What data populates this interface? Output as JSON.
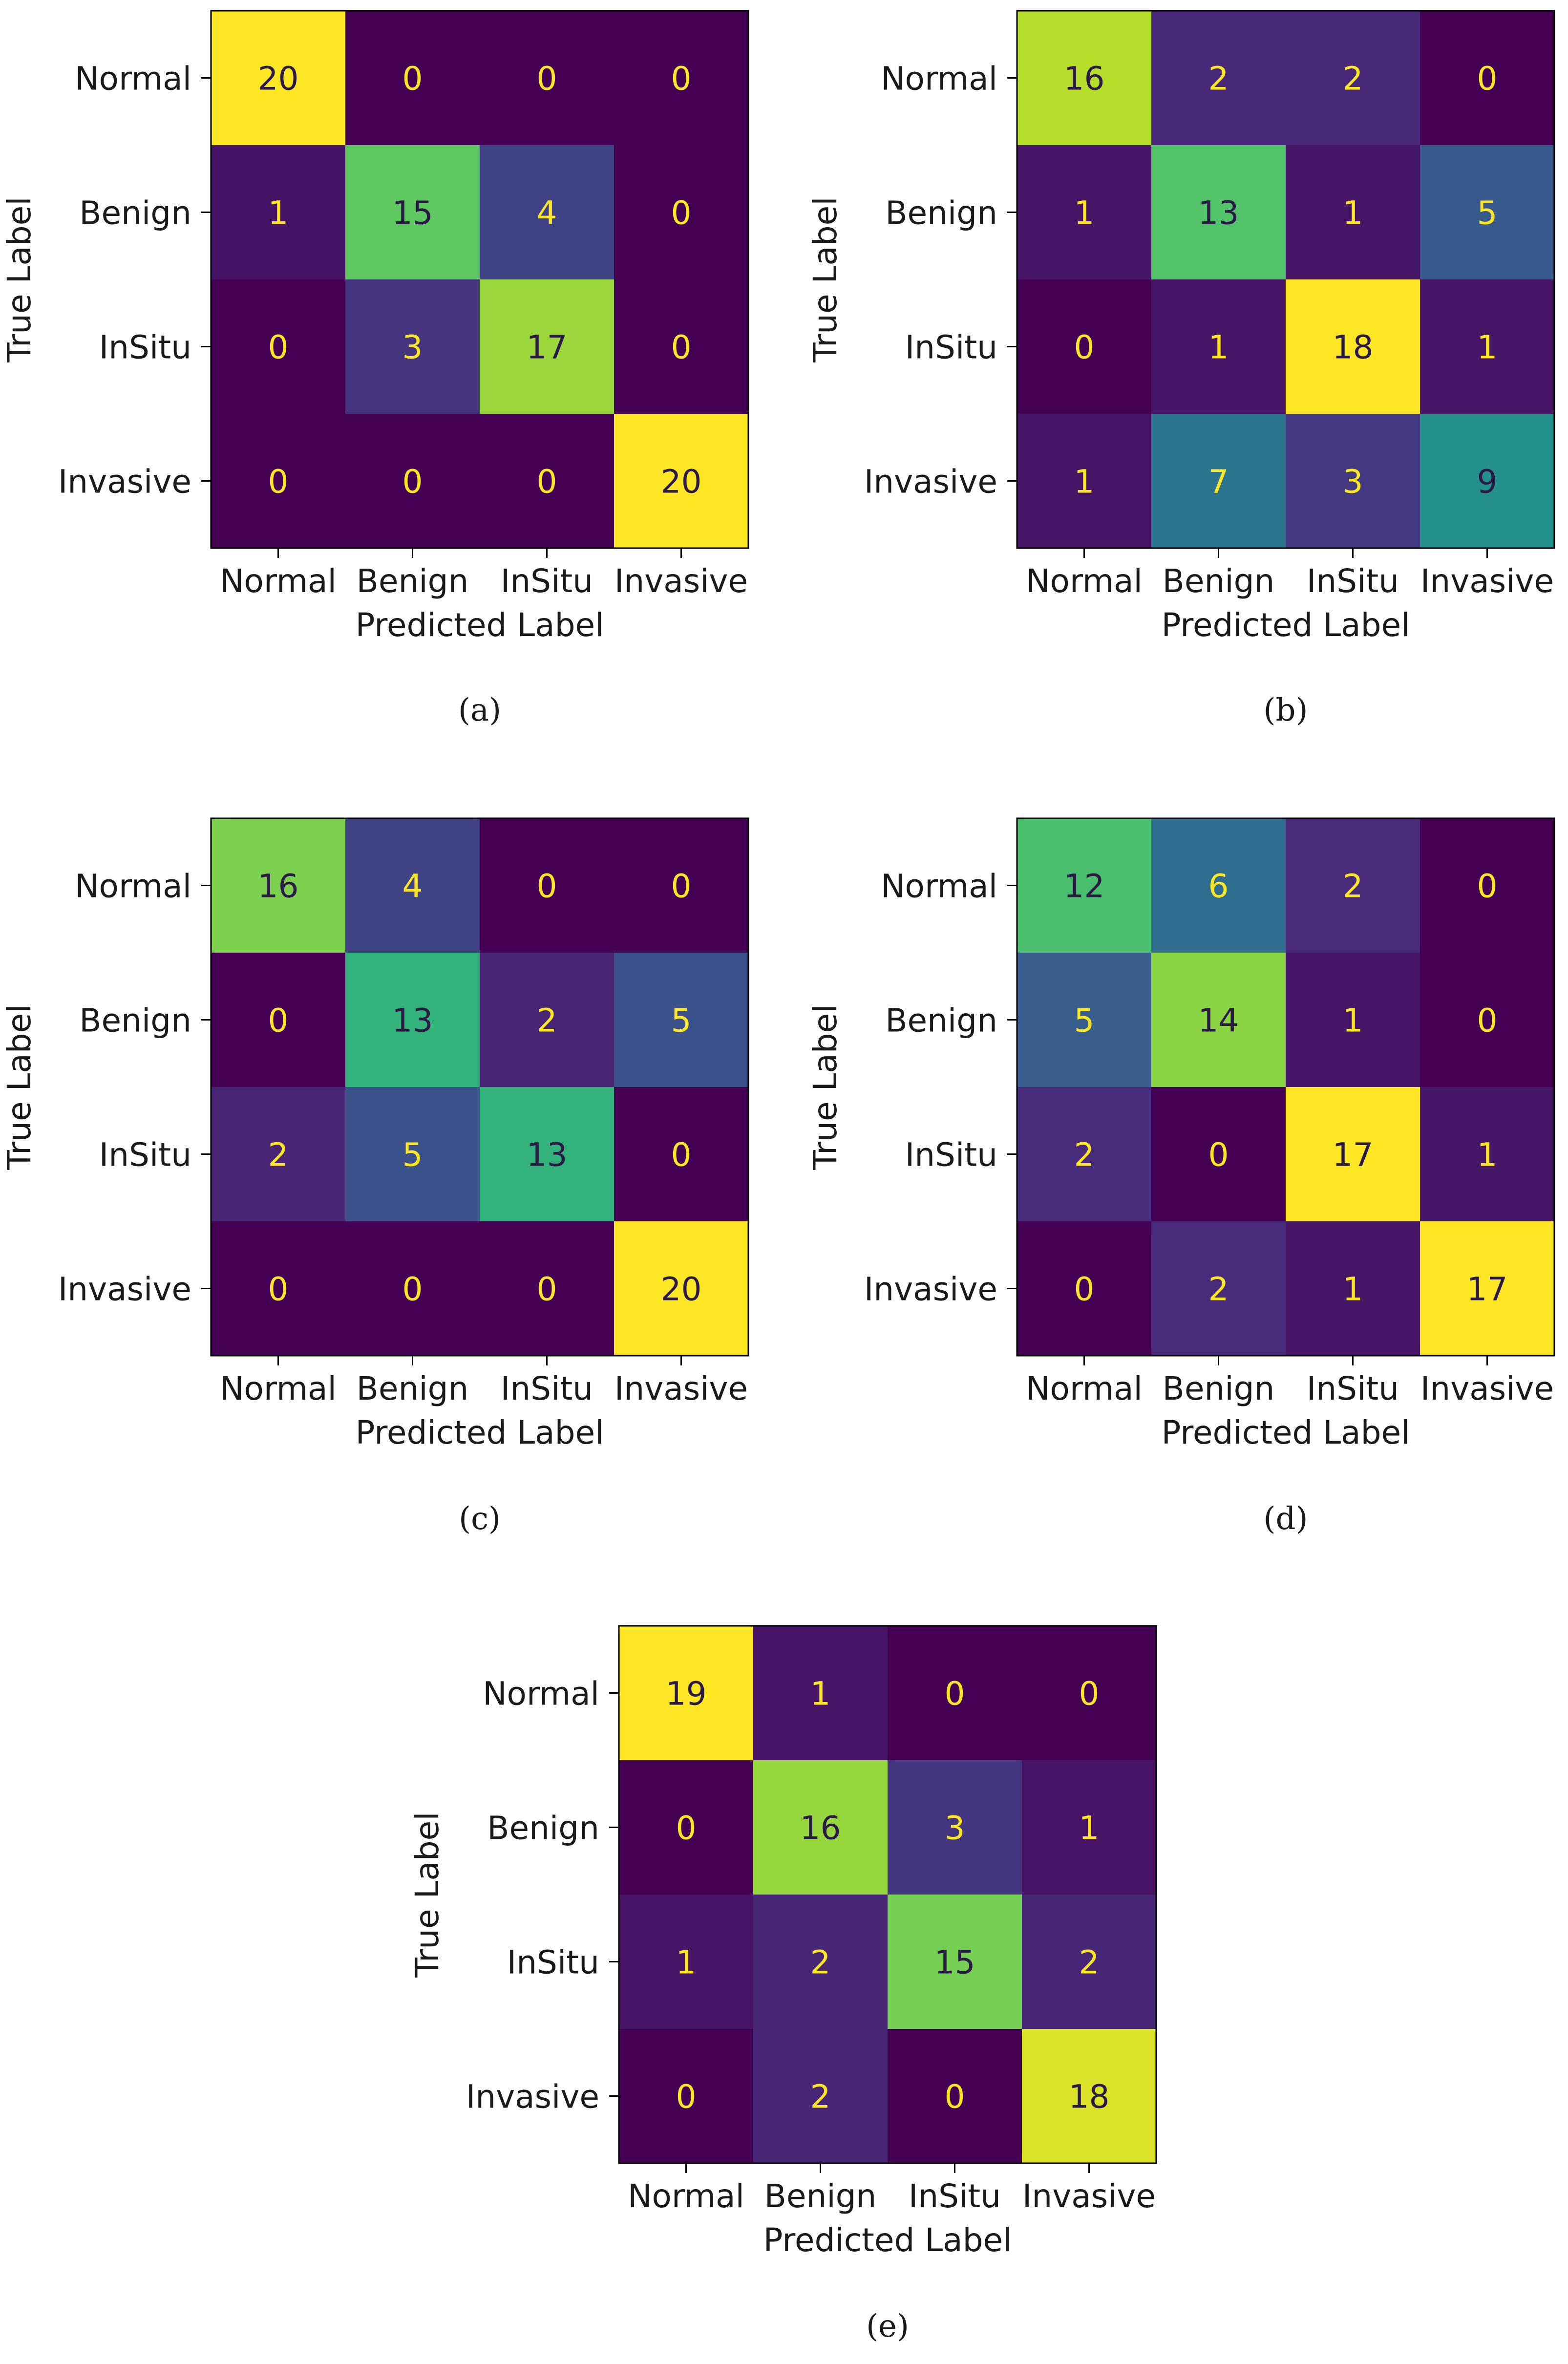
{
  "chart_data": [
    {
      "type": "heatmap",
      "caption": "(a)",
      "xlabel": "Predicted Label",
      "ylabel": "True Label",
      "x_categories": [
        "Normal",
        "Benign",
        "InSitu",
        "Invasive"
      ],
      "y_categories": [
        "Normal",
        "Benign",
        "InSitu",
        "Invasive"
      ],
      "values": [
        [
          20,
          0,
          0,
          0
        ],
        [
          1,
          15,
          4,
          0
        ],
        [
          0,
          3,
          17,
          0
        ],
        [
          0,
          0,
          0,
          20
        ]
      ],
      "vmin": 0,
      "vmax": 20,
      "colormap": "viridis"
    },
    {
      "type": "heatmap",
      "caption": "(b)",
      "xlabel": "Predicted Label",
      "ylabel": "True Label",
      "x_categories": [
        "Normal",
        "Benign",
        "InSitu",
        "Invasive"
      ],
      "y_categories": [
        "Normal",
        "Benign",
        "InSitu",
        "Invasive"
      ],
      "values": [
        [
          16,
          2,
          2,
          0
        ],
        [
          1,
          13,
          1,
          5
        ],
        [
          0,
          1,
          18,
          1
        ],
        [
          1,
          7,
          3,
          9
        ]
      ],
      "vmin": 0,
      "vmax": 18,
      "colormap": "viridis"
    },
    {
      "type": "heatmap",
      "caption": "(c)",
      "xlabel": "Predicted Label",
      "ylabel": "True Label",
      "x_categories": [
        "Normal",
        "Benign",
        "InSitu",
        "Invasive"
      ],
      "y_categories": [
        "Normal",
        "Benign",
        "InSitu",
        "Invasive"
      ],
      "values": [
        [
          16,
          4,
          0,
          0
        ],
        [
          0,
          13,
          2,
          5
        ],
        [
          2,
          5,
          13,
          0
        ],
        [
          0,
          0,
          0,
          20
        ]
      ],
      "vmin": 0,
      "vmax": 20,
      "colormap": "viridis"
    },
    {
      "type": "heatmap",
      "caption": "(d)",
      "xlabel": "Predicted Label",
      "ylabel": "True Label",
      "x_categories": [
        "Normal",
        "Benign",
        "InSitu",
        "Invasive"
      ],
      "y_categories": [
        "Normal",
        "Benign",
        "InSitu",
        "Invasive"
      ],
      "values": [
        [
          12,
          6,
          2,
          0
        ],
        [
          5,
          14,
          1,
          0
        ],
        [
          2,
          0,
          17,
          1
        ],
        [
          0,
          2,
          1,
          17
        ]
      ],
      "vmin": 0,
      "vmax": 17,
      "colormap": "viridis"
    },
    {
      "type": "heatmap",
      "caption": "(e)",
      "xlabel": "Predicted Label",
      "ylabel": "True Label",
      "x_categories": [
        "Normal",
        "Benign",
        "InSitu",
        "Invasive"
      ],
      "y_categories": [
        "Normal",
        "Benign",
        "InSitu",
        "Invasive"
      ],
      "values": [
        [
          19,
          1,
          0,
          0
        ],
        [
          0,
          16,
          3,
          1
        ],
        [
          1,
          2,
          15,
          2
        ],
        [
          0,
          2,
          0,
          18
        ]
      ],
      "vmin": 0,
      "vmax": 19,
      "colormap": "viridis"
    }
  ]
}
